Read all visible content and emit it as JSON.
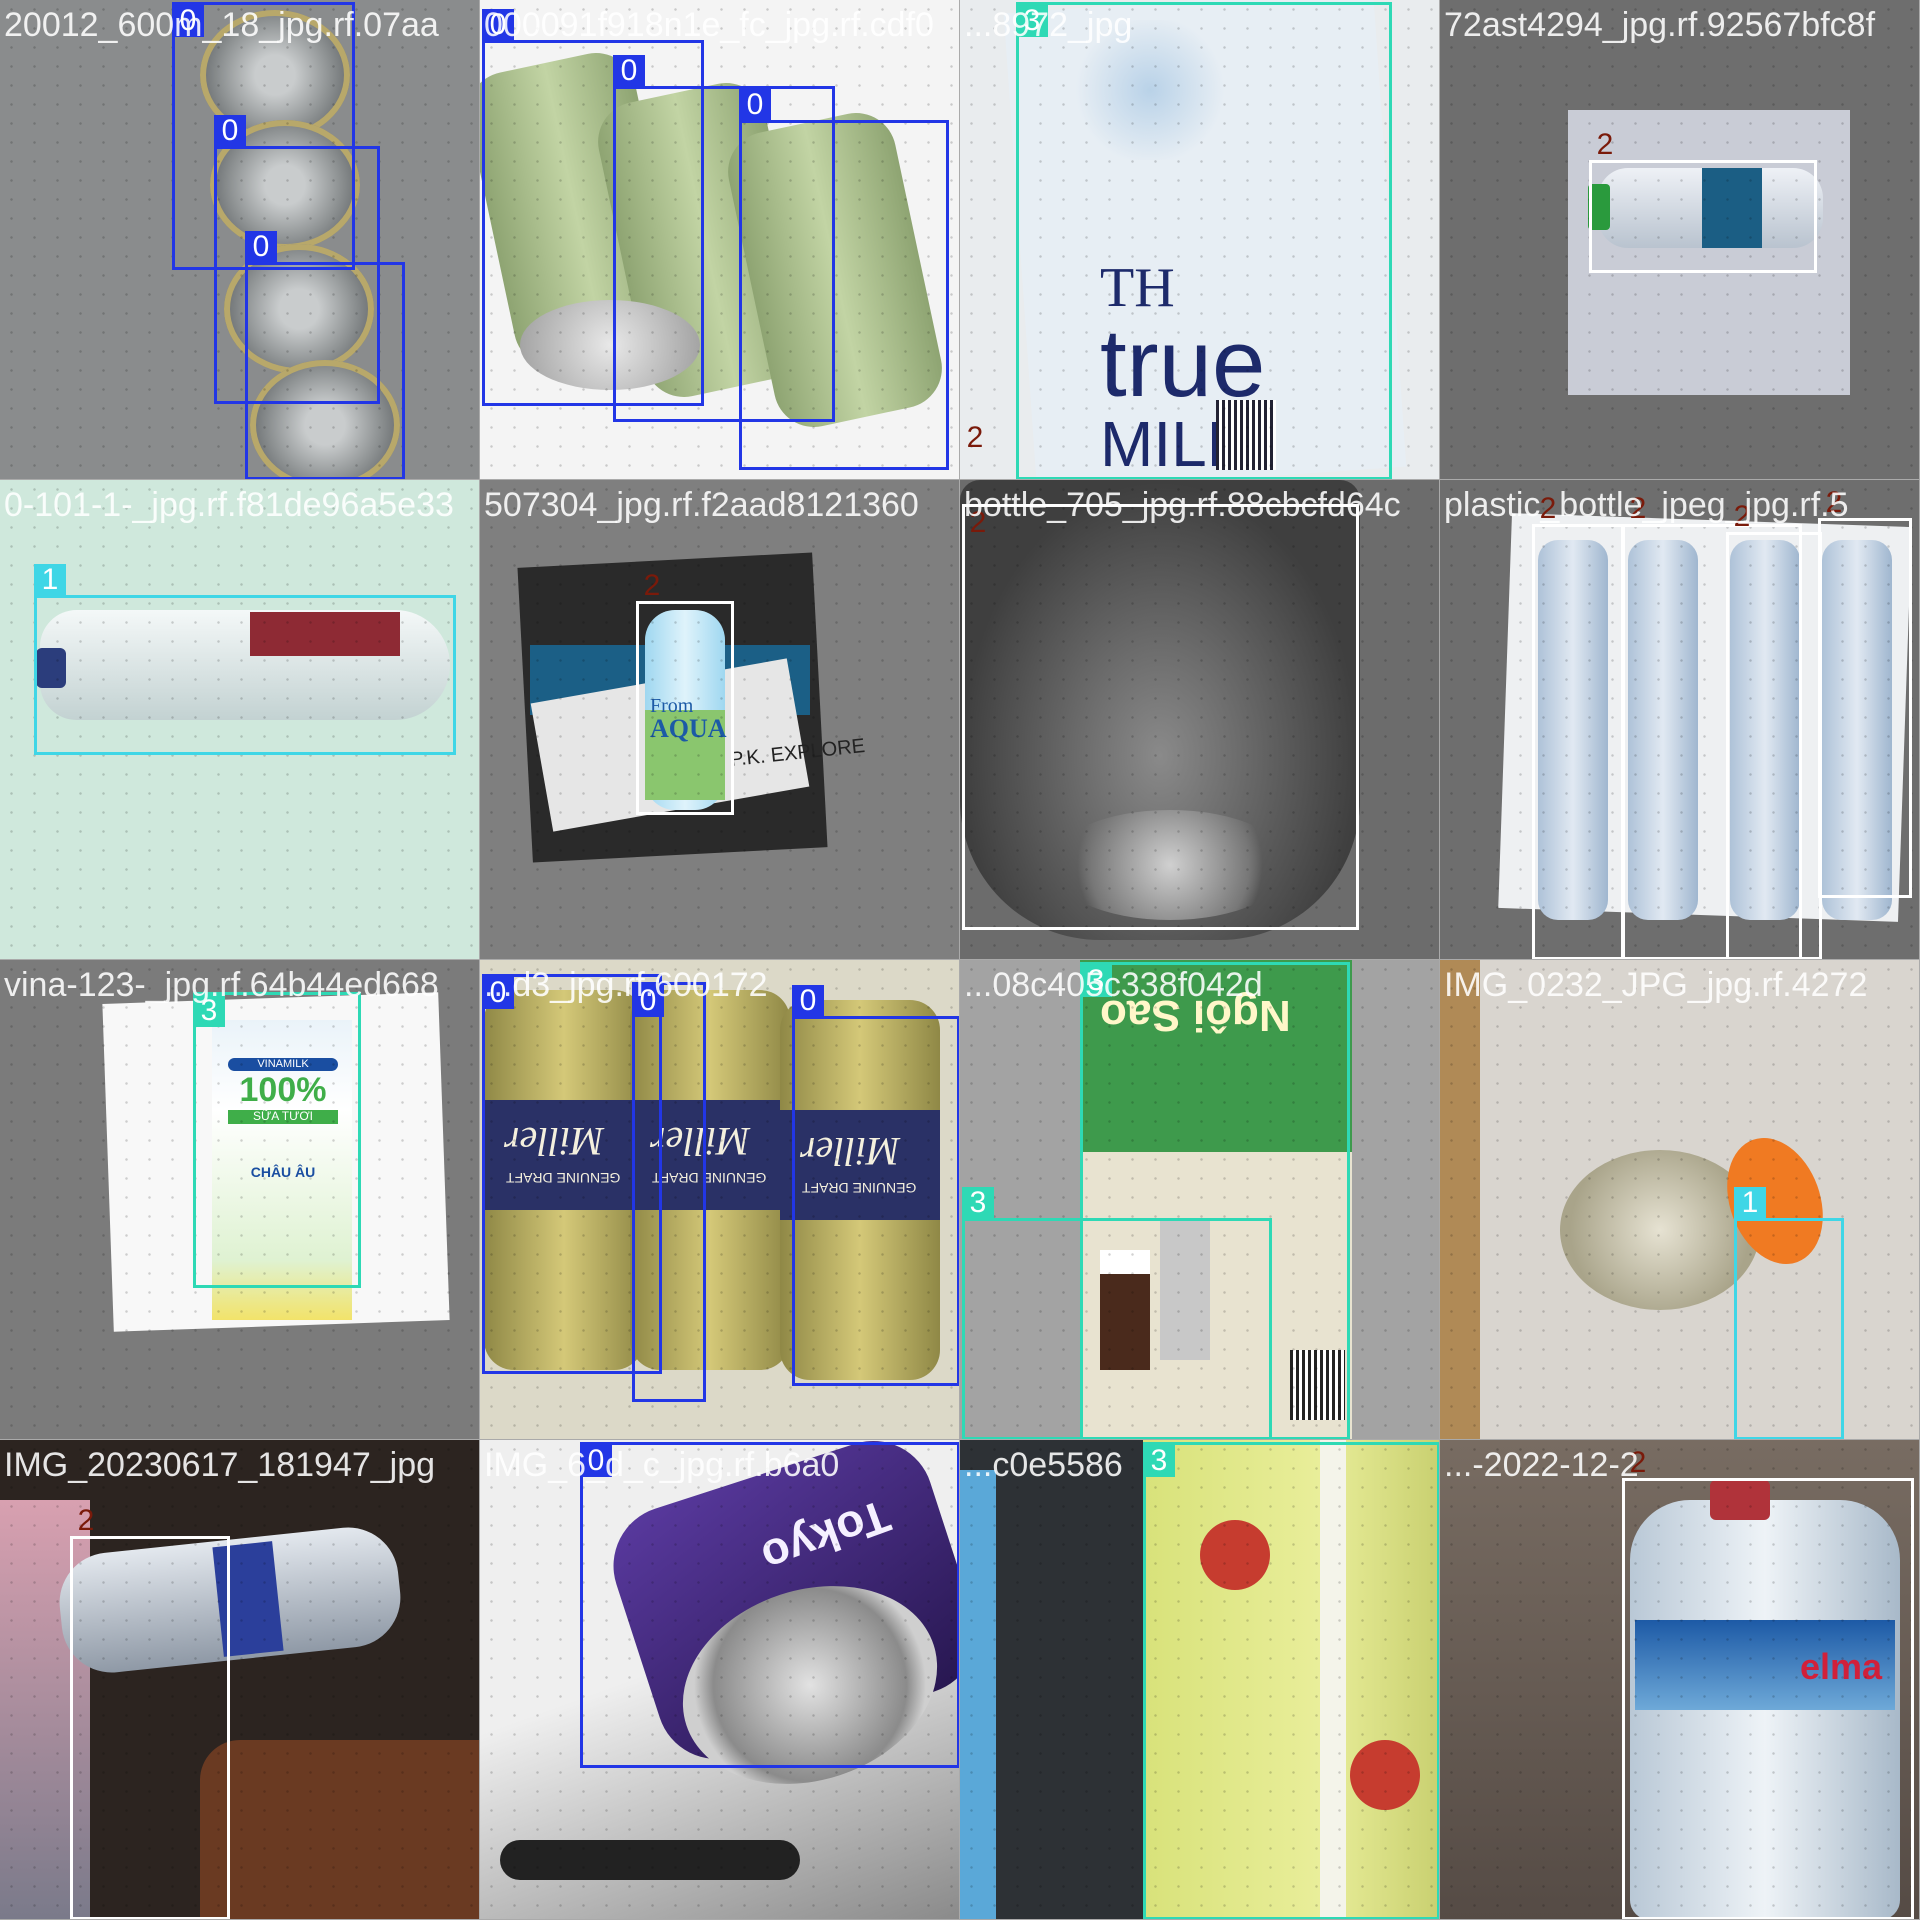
{
  "grid": {
    "columns": 4,
    "rows": 4
  },
  "class_colors": {
    "0": "#2236e6",
    "1": "#3fd6e6",
    "2": "#ffffff",
    "3": "#2ed9b5"
  },
  "tiles": [
    {
      "filename": "20012_600m_18_jpg.rf.07aa",
      "background": "#8a8c8d",
      "objects": [
        {
          "kind": "can-stack",
          "color": "#9aa0a2"
        }
      ],
      "detections": [
        {
          "cls": "0",
          "label": "0"
        },
        {
          "cls": "0",
          "label": "0"
        },
        {
          "cls": "0",
          "label": "0"
        }
      ]
    },
    {
      "filename": "000091f918n1e_fc_jpg.rf.cdf0",
      "background": "#f4f4f4",
      "objects": [
        {
          "kind": "green-cans",
          "color": "#a6b98a"
        }
      ],
      "detections": [
        {
          "cls": "0",
          "label": "0"
        },
        {
          "cls": "0",
          "label": "0"
        },
        {
          "cls": "0",
          "label": "0"
        }
      ]
    },
    {
      "filename": "...8972_jpg",
      "background": "#e9ecee",
      "objects": [
        {
          "kind": "milk-carton",
          "color": "#e7eef4",
          "brand_top": "TH",
          "brand_mid": "true",
          "brand_bottom": "MILK"
        }
      ],
      "detections": [
        {
          "cls": "3",
          "label": "3"
        },
        {
          "cls": "2",
          "label": "2"
        }
      ]
    },
    {
      "filename": "72ast4294_jpg.rf.92567bfc8f",
      "background": "#6e6e6e",
      "objects": [
        {
          "kind": "bottle-lying",
          "color": "#d6dbe6"
        }
      ],
      "detections": [
        {
          "cls": "2",
          "label": "2"
        }
      ]
    },
    {
      "filename": "0-101-1-_jpg.rf.f81de96a5e33",
      "background": "#cfe8dc",
      "objects": [
        {
          "kind": "glass-bottle",
          "color": "#e6eef0"
        }
      ],
      "detections": [
        {
          "cls": "1",
          "label": "1"
        }
      ]
    },
    {
      "filename": "507304_jpg.rf.f2aad8121360",
      "background": "#7f7f7f",
      "objects": [
        {
          "kind": "vending-bottle",
          "color": "#2a2a2a",
          "text_a": "From",
          "text_b": "AQUA",
          "text_c": "P.K. EXPLORE"
        }
      ],
      "detections": [
        {
          "cls": "2",
          "label": "2"
        }
      ]
    },
    {
      "filename": "bottle_705_jpg.rf.88cbcfd64c",
      "background": "#6c6c6c",
      "objects": [
        {
          "kind": "big-bottle",
          "color": "#555"
        }
      ],
      "detections": [
        {
          "cls": "2",
          "label": "2"
        }
      ]
    },
    {
      "filename": "plastic_bottle_jpeg_jpg.rf.5",
      "background": "#6e6e6e",
      "objects": [
        {
          "kind": "crushed-bottles",
          "color": "#d8e1ec"
        }
      ],
      "detections": [
        {
          "cls": "2",
          "label": "2"
        },
        {
          "cls": "2",
          "label": "2"
        },
        {
          "cls": "2",
          "label": "2"
        },
        {
          "cls": "2",
          "label": "2"
        }
      ]
    },
    {
      "filename": "vina-123-_jpg.rf.64b44ed668",
      "background": "#7b7b7b",
      "objects": [
        {
          "kind": "vinamilk",
          "color": "#fafafa",
          "brand": "VINAMILK",
          "pct": "100%",
          "sub": "SỮA TƯƠI",
          "origin": "CHÂU ÂU"
        }
      ],
      "detections": [
        {
          "cls": "3",
          "label": "3"
        }
      ]
    },
    {
      "filename": "...d3_jpg.rf.600172",
      "background": "#dcd9c8",
      "objects": [
        {
          "kind": "beer-cans",
          "color": "#b6ad62",
          "brand": "Miller",
          "sub": "GENUINE DRAFT"
        }
      ],
      "detections": [
        {
          "cls": "0",
          "label": "0"
        },
        {
          "cls": "0",
          "label": "0"
        },
        {
          "cls": "0",
          "label": "0"
        }
      ]
    },
    {
      "filename": "...08c405c338f042d",
      "background": "#a3a3a3",
      "objects": [
        {
          "kind": "coffee-box",
          "color": "#3f9a4d",
          "brand": "Ngôi Sao"
        }
      ],
      "detections": [
        {
          "cls": "3",
          "label": "3"
        },
        {
          "cls": "3",
          "label": "3"
        }
      ]
    },
    {
      "filename": "IMG_0232_JPG_jpg.rf.4272",
      "background": "#d9d5cf",
      "objects": [
        {
          "kind": "orange-cap-bottle",
          "color": "#f07a22"
        }
      ],
      "detections": [
        {
          "cls": "1",
          "label": "1"
        }
      ]
    },
    {
      "filename": "IMG_20230617_181947_jpg",
      "background": "#2c2420",
      "objects": [
        {
          "kind": "dark-bottle",
          "color": "#cfd6dd"
        }
      ],
      "detections": [
        {
          "cls": "2",
          "label": "2"
        }
      ]
    },
    {
      "filename": "IMG_6_d_c_jpg.rf.b6a0",
      "background": "#bdbdbd",
      "objects": [
        {
          "kind": "purple-can",
          "color": "#3a2a6e",
          "brand": "Tokyo"
        }
      ],
      "detections": [
        {
          "cls": "0",
          "label": "0"
        }
      ]
    },
    {
      "filename": "...c0e5586",
      "background": "#2d3135",
      "objects": [
        {
          "kind": "yellow-carton",
          "color": "#d8e07a"
        }
      ],
      "detections": [
        {
          "cls": "3",
          "label": "3"
        }
      ]
    },
    {
      "filename": "...-2022-12-2",
      "background": "#6c625b",
      "objects": [
        {
          "kind": "elma-bottle",
          "color": "#dbe6ee",
          "brand": "elma"
        }
      ],
      "detections": [
        {
          "cls": "2",
          "label": "2"
        }
      ]
    }
  ]
}
